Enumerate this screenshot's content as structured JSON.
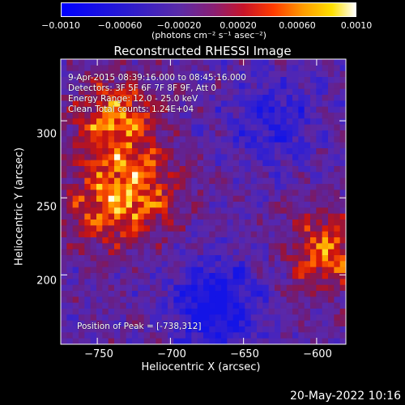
{
  "colorbar": {
    "ticks": [
      "−0.0010",
      "−0.00060",
      "−0.00020",
      "0.00020",
      "0.00060",
      "0.0010"
    ],
    "units_label": "(photons cm",
    "units_full": "(photons cm⁻² s⁻¹ asec⁻²)"
  },
  "chart_data": {
    "type": "heatmap",
    "title": "Reconstructed RHESSI Image",
    "xlabel": "Heliocentric X (arcsec)",
    "ylabel": "Heliocentric Y (arcsec)",
    "xlim": [
      -775,
      -580
    ],
    "ylim": [
      155,
      340
    ],
    "xticks": [
      "−750",
      "−700",
      "−650",
      "−600"
    ],
    "xtick_values": [
      -750,
      -700,
      -650,
      -600
    ],
    "yticks": [
      "300",
      "250",
      "200"
    ],
    "ytick_values": [
      300,
      250,
      200
    ],
    "color_range": [
      -0.001,
      0.001
    ],
    "colormap": "blue-purple-red-yellow-white",
    "peak_position": [
      -738,
      312
    ],
    "regions": [
      {
        "name": "upper-left source",
        "x": -738,
        "y": 300,
        "level": 0.95
      },
      {
        "name": "middle-left source",
        "x": -745,
        "y": 245,
        "level": 0.8
      },
      {
        "name": "right source",
        "x": -592,
        "y": 215,
        "level": 0.85
      },
      {
        "name": "center-left source",
        "x": -715,
        "y": 255,
        "level": 0.6
      },
      {
        "name": "bottom-center low",
        "x": -670,
        "y": 180,
        "level": -0.9
      },
      {
        "name": "upper-right low",
        "x": -630,
        "y": 300,
        "level": -0.55
      }
    ]
  },
  "annotations": {
    "time_range": "9-Apr-2015 08:39:16.000 to 08:45:16.000",
    "detectors": "Detectors: 3F 5F 6F 7F 8F 9F, Att 0",
    "energy": "Energy Range: 12.0 - 25.0 keV",
    "clean": "Clean    Total counts: 1.24E+04",
    "peak": "Position of Peak = [-738,312]"
  },
  "footer": {
    "date": "20-May-2022 10:16"
  }
}
